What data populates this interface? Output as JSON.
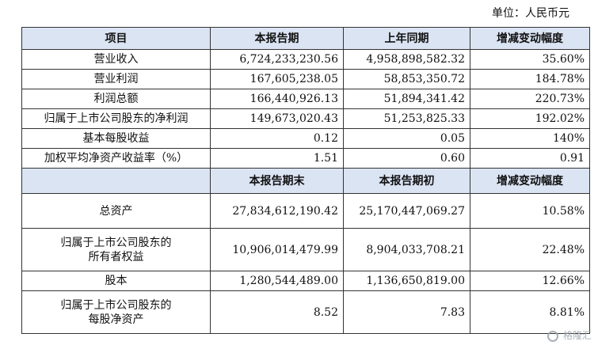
{
  "unit_label": "单位：人民币元",
  "header1": [
    "项目",
    "本报告期",
    "上年同期",
    "增减变动幅度"
  ],
  "rows1": [
    {
      "label": "营业收入",
      "cur": "6,724,233,230.56",
      "prev": "4,958,898,582.32",
      "chg": "35.60%"
    },
    {
      "label": "营业利润",
      "cur": "167,605,238.05",
      "prev": "58,853,350.72",
      "chg": "184.78%"
    },
    {
      "label": "利润总额",
      "cur": "166,440,926.13",
      "prev": "51,894,341.42",
      "chg": "220.73%"
    },
    {
      "label": "归属于上市公司股东的净利润",
      "cur": "149,673,020.43",
      "prev": "51,253,825.33",
      "chg": "192.02%"
    },
    {
      "label": "基本每股收益",
      "cur": "0.12",
      "prev": "0.05",
      "chg": "140%"
    },
    {
      "label": "加权平均净资产收益率（%）",
      "cur": "1.51",
      "prev": "0.60",
      "chg": "0.91"
    }
  ],
  "header2": [
    "",
    "本报告期末",
    "本报告期初",
    "增减变动幅度"
  ],
  "rows2": [
    {
      "label": "总资产",
      "cur": "27,834,612,190.42",
      "prev": "25,170,447,069.27",
      "chg": "10.58%"
    },
    {
      "label_line1": "归属于上市公司股东的",
      "label_line2": "所有者权益",
      "cur": "10,906,014,479.99",
      "prev": "8,904,033,708.21",
      "chg": "22.48%"
    },
    {
      "label": "股本",
      "cur": "1,280,544,489.00",
      "prev": "1,136,650,819.00",
      "chg": "12.66%"
    },
    {
      "label_line1": "归属于上市公司股东的",
      "label_line2": "每股净资产",
      "cur": "8.52",
      "prev": "7.83",
      "chg": "8.81%"
    }
  ],
  "watermark": "格隆汇"
}
